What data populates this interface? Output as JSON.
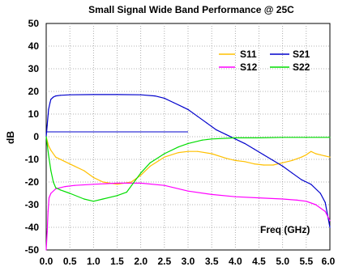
{
  "chart_data": {
    "type": "line",
    "title": "Small Signal Wide Band Performance @ 25C",
    "xlabel": "Freq (GHz)",
    "ylabel": "dB",
    "xlim": [
      0,
      6
    ],
    "ylim": [
      -50,
      50
    ],
    "xticks": [
      "0.0",
      "0.5",
      "1.0",
      "1.5",
      "2.0",
      "2.5",
      "3.0",
      "3.5",
      "4.0",
      "4.5",
      "5.0",
      "5.5",
      "6.0"
    ],
    "yticks": [
      "50",
      "40",
      "30",
      "20",
      "10",
      "0",
      "-10",
      "-20",
      "-30",
      "-40",
      "-50"
    ],
    "grid": true,
    "legend_position": "top-right",
    "series": [
      {
        "name": "S11",
        "color": "#FFC000",
        "x": [
          0.0,
          0.05,
          0.1,
          0.2,
          0.4,
          0.6,
          0.8,
          1.0,
          1.2,
          1.5,
          1.8,
          2.0,
          2.2,
          2.5,
          2.8,
          3.0,
          3.2,
          3.5,
          3.8,
          4.0,
          4.2,
          4.4,
          4.6,
          4.8,
          5.0,
          5.2,
          5.4,
          5.5,
          5.6,
          5.7,
          5.8,
          5.9,
          6.0
        ],
        "values": [
          0,
          -4,
          -6,
          -9,
          -11,
          -13,
          -15,
          -18,
          -20,
          -21,
          -20,
          -17,
          -13,
          -9,
          -7,
          -6.5,
          -6.5,
          -7.5,
          -9.5,
          -10.5,
          -11,
          -12,
          -12.5,
          -12.5,
          -11.5,
          -10.5,
          -9,
          -8,
          -6.5,
          -7.5,
          -8,
          -8.5,
          -9
        ]
      },
      {
        "name": "S21",
        "color": "#0000CC",
        "x": [
          0.0,
          0.02,
          0.05,
          0.08,
          0.1,
          0.15,
          0.2,
          0.3,
          0.5,
          1.0,
          1.5,
          2.0,
          2.3,
          2.5,
          2.7,
          2.9,
          3.0,
          3.2,
          3.4,
          3.6,
          3.8,
          4.0,
          4.2,
          4.4,
          4.6,
          4.8,
          5.0,
          5.2,
          5.4,
          5.6,
          5.8,
          5.9,
          6.0
        ],
        "values": [
          0,
          5,
          12,
          15,
          16.5,
          17.5,
          18,
          18.3,
          18.5,
          18.6,
          18.6,
          18.5,
          18,
          17,
          15,
          13,
          12,
          9,
          6,
          3,
          1,
          -1,
          -3,
          -5.5,
          -8,
          -10.5,
          -13,
          -16,
          -19,
          -21,
          -25,
          -29,
          -40
        ]
      },
      {
        "name": "S12",
        "color": "#FF00FF",
        "x": [
          0.0,
          0.02,
          0.04,
          0.06,
          0.1,
          0.2,
          0.4,
          0.6,
          1.0,
          1.5,
          2.0,
          2.5,
          3.0,
          3.5,
          4.0,
          4.5,
          5.0,
          5.3,
          5.5,
          5.7,
          5.9,
          6.0
        ],
        "values": [
          -50,
          -42,
          -33,
          -27,
          -25,
          -23,
          -22,
          -21.5,
          -21,
          -20.5,
          -20.5,
          -21.5,
          -24,
          -25.5,
          -26.5,
          -27,
          -27.5,
          -28,
          -28.5,
          -30,
          -33,
          -37
        ]
      },
      {
        "name": "S22",
        "color": "#00DD00",
        "x": [
          0.0,
          0.05,
          0.1,
          0.15,
          0.2,
          0.3,
          0.5,
          0.8,
          1.0,
          1.2,
          1.5,
          1.7,
          2.0,
          2.2,
          2.5,
          2.8,
          3.0,
          3.3,
          3.5,
          4.0,
          4.5,
          5.0,
          5.5,
          6.0
        ],
        "values": [
          0,
          -8,
          -15,
          -20,
          -22.5,
          -23.5,
          -25,
          -27.5,
          -28.5,
          -27.5,
          -26,
          -24.5,
          -16,
          -11.5,
          -7.5,
          -4.5,
          -3,
          -1.5,
          -1,
          -0.5,
          -0.5,
          -0.3,
          -0.3,
          -0.3
        ]
      }
    ]
  }
}
